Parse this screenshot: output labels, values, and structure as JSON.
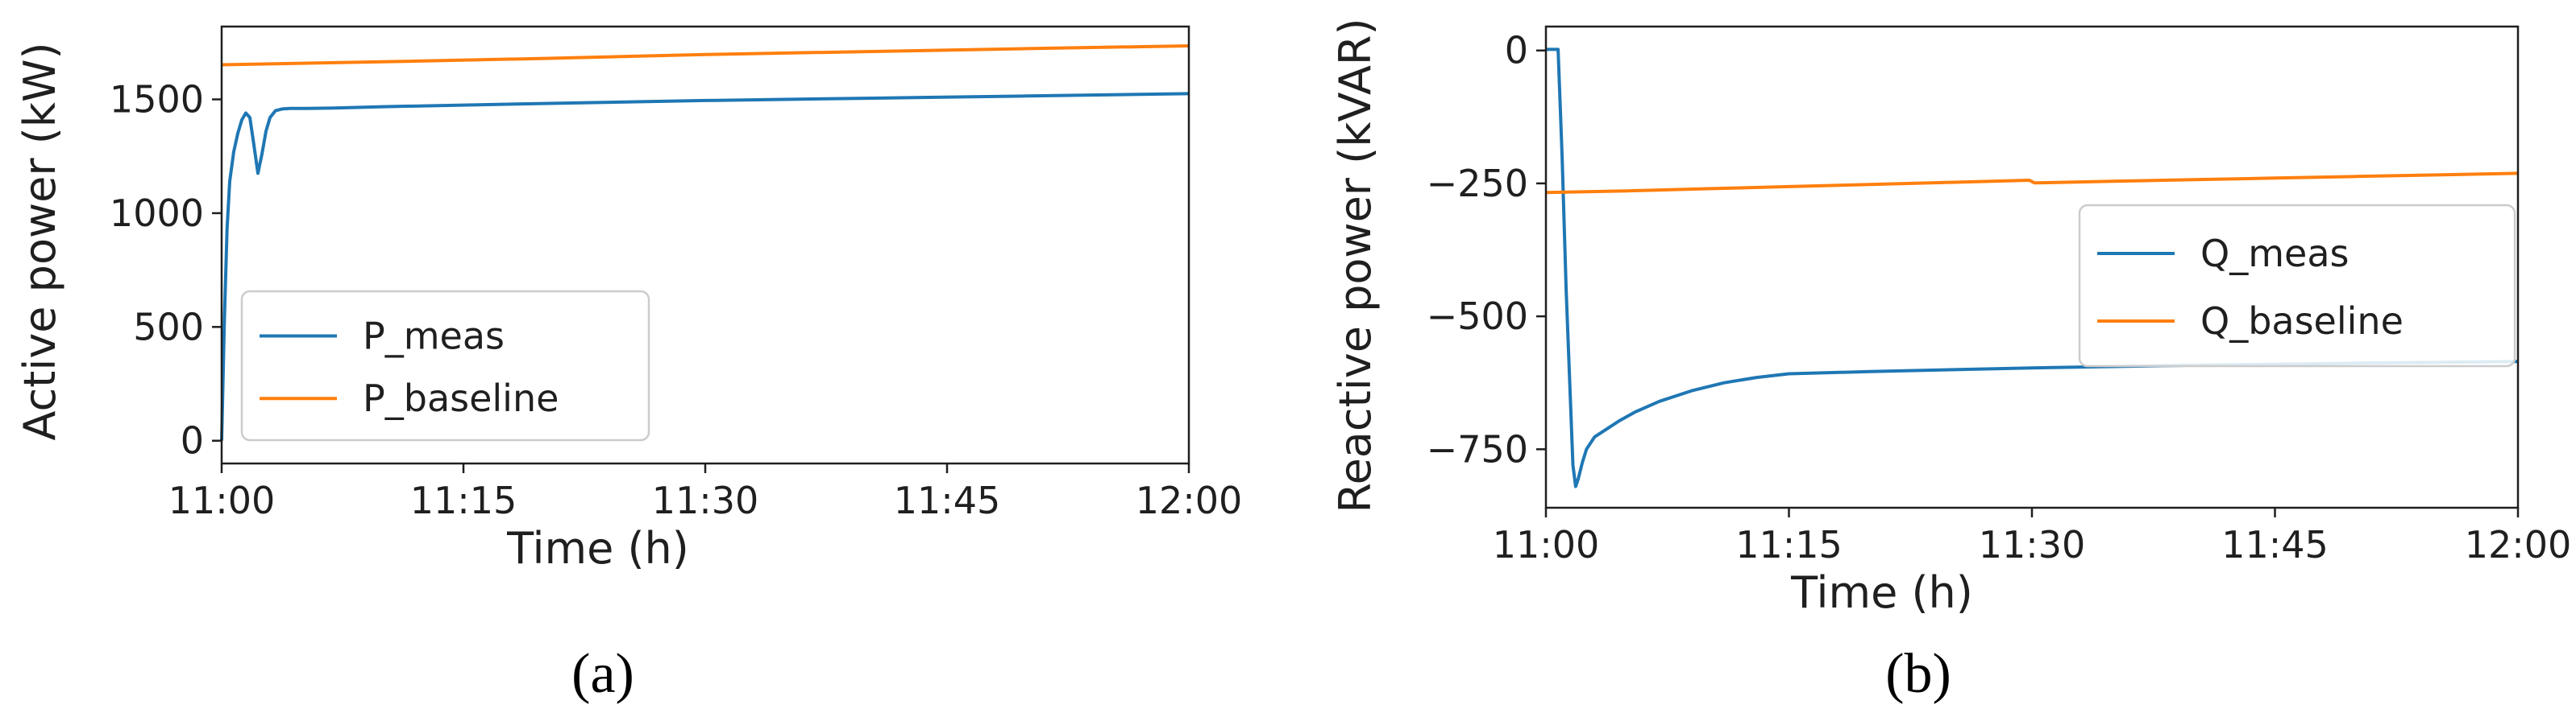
{
  "captions": [
    "(a)",
    "(b)"
  ],
  "colors": {
    "series_1": "#1f77b4",
    "series_2": "#ff7f0e",
    "axis": "#1f1f1f",
    "legend_border": "#cccccc"
  },
  "chart_data": [
    {
      "type": "line",
      "xlabel": "Time (h)",
      "ylabel": "Active power (kW)",
      "xticks": [
        "11:00",
        "11:15",
        "11:30",
        "11:45",
        "12:00"
      ],
      "xlim": [
        "11:00",
        "12:00"
      ],
      "yticks": [
        "0",
        "500",
        "1000",
        "1500"
      ],
      "ylim": [
        -100,
        1820
      ],
      "legend": {
        "position": "lower-left"
      },
      "series": [
        {
          "name": "P_meas",
          "x": [
            "11:00:00",
            "11:00:10",
            "11:00:20",
            "11:00:30",
            "11:00:45",
            "11:01:00",
            "11:01:15",
            "11:01:30",
            "11:01:45",
            "11:02:00",
            "11:02:15",
            "11:02:30",
            "11:02:45",
            "11:03:00",
            "11:03:20",
            "11:03:45",
            "11:04:15",
            "11:05:00",
            "11:07:00",
            "11:10:00",
            "11:15:00",
            "11:20:00",
            "11:30:00",
            "11:40:00",
            "11:50:00",
            "12:00:00"
          ],
          "y": [
            0,
            520,
            930,
            1140,
            1270,
            1350,
            1410,
            1440,
            1420,
            1300,
            1175,
            1260,
            1360,
            1420,
            1450,
            1458,
            1460,
            1460,
            1462,
            1468,
            1475,
            1482,
            1495,
            1505,
            1515,
            1525
          ]
        },
        {
          "name": "P_baseline",
          "x": [
            "11:00:00",
            "11:10:00",
            "11:20:00",
            "11:30:00",
            "11:40:00",
            "11:50:00",
            "12:00:00"
          ],
          "y": [
            1652,
            1665,
            1680,
            1697,
            1710,
            1723,
            1735
          ]
        }
      ]
    },
    {
      "type": "line",
      "xlabel": "Time (h)",
      "ylabel": "Reactive power (kVAR)",
      "xticks": [
        "11:00",
        "11:15",
        "11:30",
        "11:45",
        "12:00"
      ],
      "xlim": [
        "11:00",
        "12:00"
      ],
      "yticks": [
        "0",
        "−250",
        "−500",
        "−750"
      ],
      "ylim": [
        -860,
        45
      ],
      "legend": {
        "position": "center-right"
      },
      "series": [
        {
          "name": "Q_meas",
          "x": [
            "11:00:00",
            "11:00:45",
            "11:01:00",
            "11:01:15",
            "11:01:30",
            "11:01:40",
            "11:01:50",
            "11:02:00",
            "11:02:15",
            "11:02:30",
            "11:03:00",
            "11:03:45",
            "11:04:30",
            "11:05:30",
            "11:07:00",
            "11:09:00",
            "11:11:00",
            "11:13:00",
            "11:15:00",
            "11:20:00",
            "11:30:00",
            "11:40:00",
            "11:50:00",
            "12:00:00"
          ],
          "y": [
            2,
            2,
            -200,
            -450,
            -650,
            -780,
            -820,
            -805,
            -775,
            -750,
            -727,
            -712,
            -697,
            -680,
            -660,
            -640,
            -625,
            -615,
            -608,
            -604,
            -597,
            -592,
            -588,
            -585
          ]
        },
        {
          "name": "Q_baseline",
          "x": [
            "11:00:00",
            "11:05:00",
            "11:10:00",
            "11:15:00",
            "11:20:00",
            "11:25:00",
            "11:29:50",
            "11:30:10",
            "11:35:00",
            "11:40:00",
            "11:45:00",
            "11:50:00",
            "11:55:00",
            "12:00:00"
          ],
          "y": [
            -267,
            -264,
            -260,
            -256,
            -252,
            -248,
            -244,
            -249,
            -246,
            -243,
            -240,
            -237,
            -234,
            -231
          ]
        }
      ]
    }
  ]
}
